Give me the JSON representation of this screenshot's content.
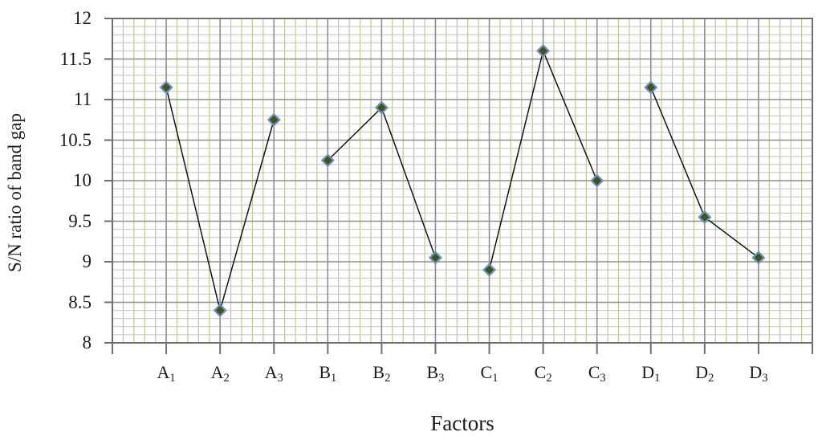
{
  "chart_data": {
    "type": "line",
    "title": "",
    "xlabel": "Factors",
    "ylabel": "S/N ratio of band gap",
    "ylim": [
      8,
      12
    ],
    "ytick_step": 0.5,
    "y_minor_step": 0.1,
    "ytick_labels": [
      "12",
      "11.5",
      "11",
      "10.5",
      "10",
      "9.5",
      "9",
      "8.5",
      "8"
    ],
    "grid": "fine minor grid on (green vertical, gray horizontal)",
    "legend": "none",
    "categories": [
      {
        "base": "A",
        "sub": "1"
      },
      {
        "base": "A",
        "sub": "2"
      },
      {
        "base": "A",
        "sub": "3"
      },
      {
        "base": "B",
        "sub": "1"
      },
      {
        "base": "B",
        "sub": "2"
      },
      {
        "base": "B",
        "sub": "3"
      },
      {
        "base": "C",
        "sub": "1"
      },
      {
        "base": "C",
        "sub": "2"
      },
      {
        "base": "C",
        "sub": "3"
      },
      {
        "base": "D",
        "sub": "1"
      },
      {
        "base": "D",
        "sub": "2"
      },
      {
        "base": "D",
        "sub": "3"
      }
    ],
    "series": [
      {
        "name": "A",
        "categories": [
          "A1",
          "A2",
          "A3"
        ],
        "values": [
          11.15,
          8.4,
          10.75
        ]
      },
      {
        "name": "B",
        "categories": [
          "B1",
          "B2",
          "B3"
        ],
        "values": [
          10.25,
          10.9,
          9.05
        ]
      },
      {
        "name": "C",
        "categories": [
          "C1",
          "C2",
          "C3"
        ],
        "values": [
          8.9,
          11.6,
          10.0
        ]
      },
      {
        "name": "D",
        "categories": [
          "D1",
          "D2",
          "D3"
        ],
        "values": [
          11.15,
          9.55,
          9.05
        ]
      }
    ],
    "marker": "diamond",
    "colors": {
      "line": "#141414",
      "marker_fill": "#44511f",
      "marker_border": "#6b93bb",
      "grid_minor_v": "#b8cd90",
      "grid_minor_h": "#c2c2c2",
      "grid_major": "#8e8e8e",
      "axis": "#707070",
      "text": "#1c1c1c"
    }
  }
}
